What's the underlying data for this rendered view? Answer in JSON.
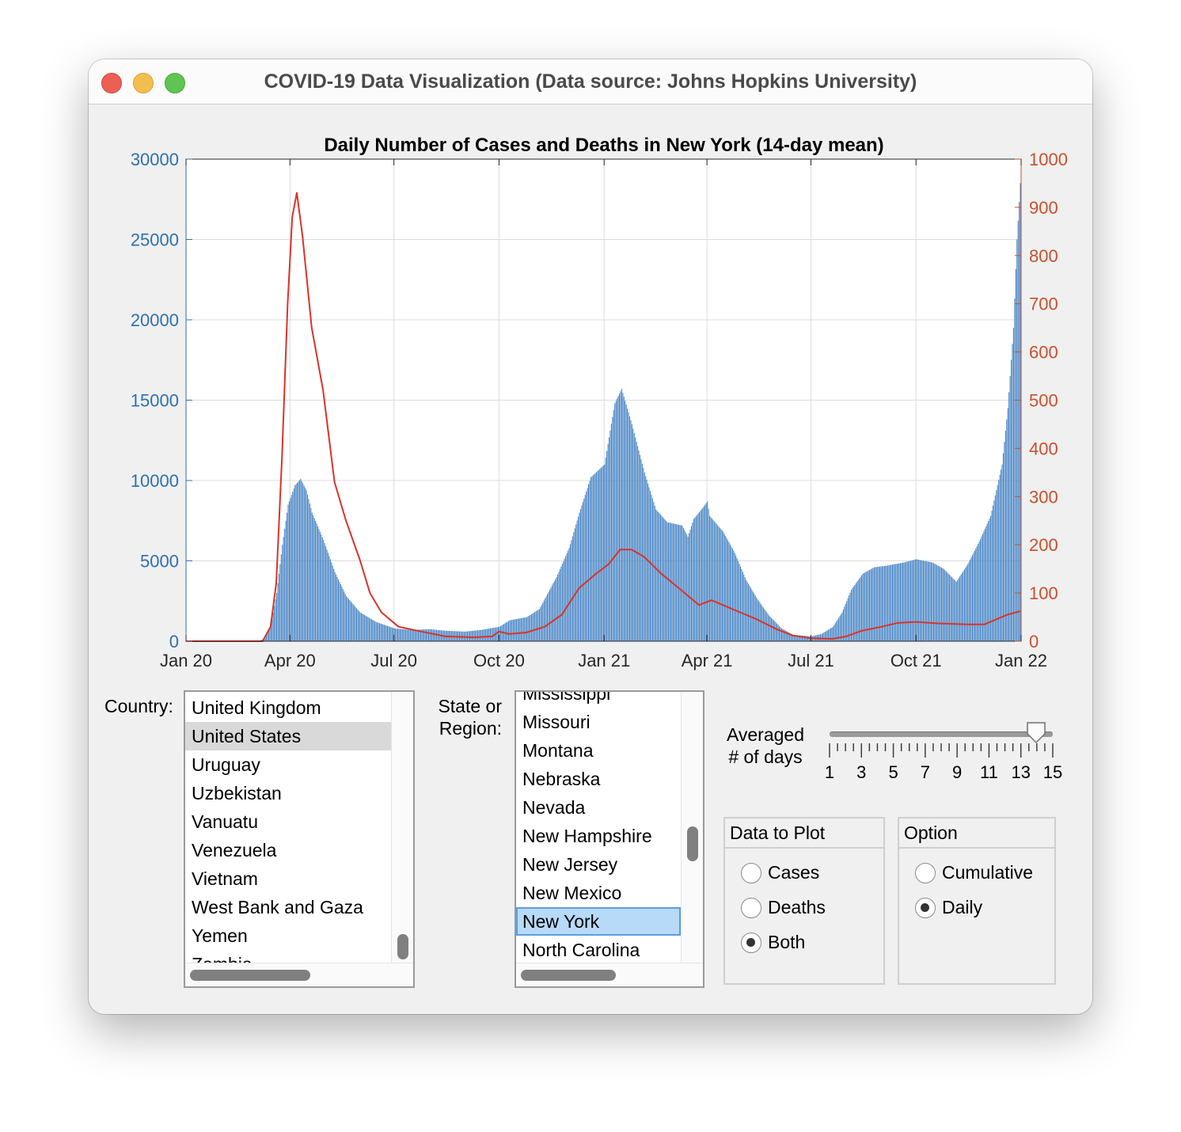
{
  "window": {
    "title": "COVID-19 Data Visualization (Data source: Johns Hopkins University)"
  },
  "colors": {
    "cases_bar": "#4a86c5",
    "deaths_line": "#d9332a",
    "left_axis": "#2f6fb0",
    "right_axis": "#c9502a",
    "selection_blue": "#b7daf8"
  },
  "controls": {
    "country_label": "Country:",
    "countries": [
      "United Kingdom",
      "United States",
      "Uruguay",
      "Uzbekistan",
      "Vanuatu",
      "Venezuela",
      "Vietnam",
      "West Bank and Gaza",
      "Yemen",
      "Zambia"
    ],
    "selected_country": "United States",
    "region_label_line1": "State or",
    "region_label_line2": "Region:",
    "regions": [
      "Mississippi",
      "Missouri",
      "Montana",
      "Nebraska",
      "Nevada",
      "New Hampshire",
      "New Jersey",
      "New Mexico",
      "New York",
      "North Carolina"
    ],
    "selected_region": "New York",
    "averaged_label_line1": "Averaged",
    "averaged_label_line2": "# of days",
    "slider_ticks": [
      "1",
      "3",
      "5",
      "7",
      "9",
      "11",
      "13",
      "15"
    ],
    "slider_value": 14,
    "data_to_plot": {
      "title": "Data to Plot",
      "options": [
        "Cases",
        "Deaths",
        "Both"
      ],
      "selected": "Both"
    },
    "option": {
      "title": "Option",
      "options": [
        "Cumulative",
        "Daily"
      ],
      "selected": "Daily"
    }
  },
  "chart_data": {
    "type": "bar",
    "title": "Daily Number of Cases and Deaths in New York (14-day mean)",
    "x_tick_labels": [
      "Jan 20",
      "Apr 20",
      "Jul 20",
      "Oct 20",
      "Jan 21",
      "Apr 21",
      "Jul 21",
      "Oct 21",
      "Jan 22"
    ],
    "x_tick_dates": [
      "2020-01-01",
      "2020-04-01",
      "2020-07-01",
      "2020-10-01",
      "2021-01-01",
      "2021-04-01",
      "2021-07-01",
      "2021-10-01",
      "2022-01-01"
    ],
    "xlim": [
      "2020-01-01",
      "2022-01-01"
    ],
    "y_left": {
      "lim": [
        0,
        30000
      ],
      "ticks": [
        0,
        5000,
        10000,
        15000,
        20000,
        25000,
        30000
      ]
    },
    "y_right": {
      "lim": [
        0,
        1000
      ],
      "ticks": [
        0,
        100,
        200,
        300,
        400,
        500,
        600,
        700,
        800,
        900,
        1000
      ]
    },
    "grid": true,
    "series": [
      {
        "type": "bar",
        "axis": "left",
        "points": [
          [
            "2020-01-01",
            0
          ],
          [
            "2020-03-04",
            0
          ],
          [
            "2020-03-10",
            200
          ],
          [
            "2020-03-15",
            1000
          ],
          [
            "2020-03-20",
            3000
          ],
          [
            "2020-03-25",
            6000
          ],
          [
            "2020-03-30",
            8500
          ],
          [
            "2020-04-05",
            9700
          ],
          [
            "2020-04-10",
            10100
          ],
          [
            "2020-04-15",
            9400
          ],
          [
            "2020-04-20",
            8000
          ],
          [
            "2020-04-30",
            6300
          ],
          [
            "2020-05-10",
            4300
          ],
          [
            "2020-05-20",
            2800
          ],
          [
            "2020-06-01",
            1800
          ],
          [
            "2020-06-15",
            1200
          ],
          [
            "2020-07-01",
            800
          ],
          [
            "2020-07-15",
            700
          ],
          [
            "2020-08-01",
            750
          ],
          [
            "2020-08-15",
            650
          ],
          [
            "2020-09-01",
            600
          ],
          [
            "2020-09-15",
            700
          ],
          [
            "2020-10-01",
            900
          ],
          [
            "2020-10-10",
            1300
          ],
          [
            "2020-10-25",
            1500
          ],
          [
            "2020-11-05",
            2000
          ],
          [
            "2020-11-20",
            4000
          ],
          [
            "2020-12-01",
            5800
          ],
          [
            "2020-12-10",
            8000
          ],
          [
            "2020-12-20",
            10200
          ],
          [
            "2021-01-01",
            11000
          ],
          [
            "2021-01-10",
            14800
          ],
          [
            "2021-01-16",
            15700
          ],
          [
            "2021-01-25",
            13500
          ],
          [
            "2021-02-05",
            10500
          ],
          [
            "2021-02-15",
            8200
          ],
          [
            "2021-02-25",
            7400
          ],
          [
            "2021-03-10",
            7200
          ],
          [
            "2021-03-15",
            6500
          ],
          [
            "2021-03-20",
            7600
          ],
          [
            "2021-03-28",
            8300
          ],
          [
            "2021-04-01",
            8700
          ],
          [
            "2021-04-03",
            7800
          ],
          [
            "2021-04-15",
            6800
          ],
          [
            "2021-04-25",
            5500
          ],
          [
            "2021-05-05",
            3800
          ],
          [
            "2021-05-15",
            2600
          ],
          [
            "2021-05-25",
            1600
          ],
          [
            "2021-06-05",
            800
          ],
          [
            "2021-06-15",
            400
          ],
          [
            "2021-07-01",
            300
          ],
          [
            "2021-07-10",
            450
          ],
          [
            "2021-07-20",
            900
          ],
          [
            "2021-07-28",
            1800
          ],
          [
            "2021-08-05",
            3200
          ],
          [
            "2021-08-15",
            4200
          ],
          [
            "2021-08-25",
            4600
          ],
          [
            "2021-09-05",
            4700
          ],
          [
            "2021-09-20",
            4900
          ],
          [
            "2021-10-01",
            5100
          ],
          [
            "2021-10-15",
            4900
          ],
          [
            "2021-10-25",
            4500
          ],
          [
            "2021-11-05",
            3700
          ],
          [
            "2021-11-15",
            4800
          ],
          [
            "2021-11-25",
            6200
          ],
          [
            "2021-12-05",
            7800
          ],
          [
            "2021-12-15",
            11000
          ],
          [
            "2021-12-20",
            14500
          ],
          [
            "2021-12-25",
            19500
          ],
          [
            "2021-12-28",
            25000
          ],
          [
            "2021-12-31",
            28500
          ]
        ]
      },
      {
        "type": "line",
        "axis": "right",
        "points": [
          [
            "2020-01-01",
            0
          ],
          [
            "2020-03-08",
            0
          ],
          [
            "2020-03-15",
            30
          ],
          [
            "2020-03-20",
            120
          ],
          [
            "2020-03-25",
            380
          ],
          [
            "2020-03-30",
            700
          ],
          [
            "2020-04-03",
            880
          ],
          [
            "2020-04-07",
            930
          ],
          [
            "2020-04-12",
            840
          ],
          [
            "2020-04-20",
            650
          ],
          [
            "2020-04-30",
            520
          ],
          [
            "2020-05-10",
            330
          ],
          [
            "2020-05-20",
            250
          ],
          [
            "2020-06-01",
            170
          ],
          [
            "2020-06-10",
            100
          ],
          [
            "2020-06-20",
            60
          ],
          [
            "2020-07-05",
            30
          ],
          [
            "2020-07-25",
            20
          ],
          [
            "2020-08-15",
            10
          ],
          [
            "2020-09-10",
            8
          ],
          [
            "2020-09-25",
            10
          ],
          [
            "2020-10-01",
            20
          ],
          [
            "2020-10-10",
            15
          ],
          [
            "2020-10-25",
            18
          ],
          [
            "2020-11-10",
            30
          ],
          [
            "2020-11-25",
            55
          ],
          [
            "2020-12-10",
            110
          ],
          [
            "2020-12-25",
            140
          ],
          [
            "2021-01-05",
            160
          ],
          [
            "2021-01-15",
            190
          ],
          [
            "2021-01-25",
            190
          ],
          [
            "2021-02-05",
            175
          ],
          [
            "2021-02-20",
            140
          ],
          [
            "2021-03-10",
            105
          ],
          [
            "2021-03-25",
            75
          ],
          [
            "2021-04-05",
            85
          ],
          [
            "2021-04-15",
            75
          ],
          [
            "2021-04-30",
            60
          ],
          [
            "2021-05-15",
            45
          ],
          [
            "2021-06-01",
            25
          ],
          [
            "2021-06-15",
            12
          ],
          [
            "2021-07-01",
            6
          ],
          [
            "2021-07-20",
            5
          ],
          [
            "2021-08-01",
            10
          ],
          [
            "2021-08-15",
            22
          ],
          [
            "2021-09-01",
            30
          ],
          [
            "2021-09-15",
            38
          ],
          [
            "2021-10-01",
            40
          ],
          [
            "2021-10-20",
            37
          ],
          [
            "2021-11-15",
            35
          ],
          [
            "2021-11-30",
            35
          ],
          [
            "2021-12-10",
            45
          ],
          [
            "2021-12-20",
            55
          ],
          [
            "2021-12-31",
            62
          ]
        ]
      }
    ]
  }
}
